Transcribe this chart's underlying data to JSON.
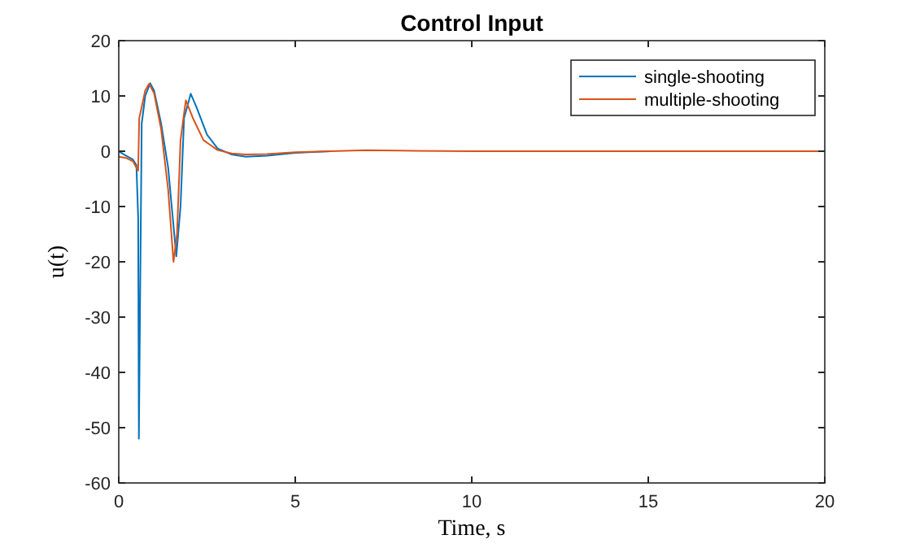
{
  "chart_data": {
    "type": "line",
    "title": "Control Input",
    "xlabel": "Time, s",
    "ylabel": "u(t)",
    "xlim": [
      0,
      20
    ],
    "ylim": [
      -60,
      20
    ],
    "xticks": [
      0,
      5,
      10,
      15,
      20
    ],
    "yticks": [
      -60,
      -50,
      -40,
      -30,
      -20,
      -10,
      0,
      10,
      20
    ],
    "legend": "top right",
    "grid": false,
    "series": [
      {
        "name": "single-shooting",
        "color": "#0072bd",
        "x": [
          0,
          0.2,
          0.4,
          0.5,
          0.55,
          0.57,
          0.6,
          0.65,
          0.75,
          0.89,
          1.0,
          1.2,
          1.4,
          1.5,
          1.63,
          1.75,
          1.85,
          2.04,
          2.2,
          2.5,
          2.8,
          3.2,
          3.6,
          4.2,
          5,
          6
        ],
        "values": [
          0,
          -0.8,
          -1.5,
          -2.5,
          -12,
          -52,
          -30,
          5,
          10,
          12.3,
          11,
          5,
          -3,
          -10,
          -19,
          -10,
          6,
          10.4,
          8,
          3,
          0.5,
          -0.6,
          -1,
          -0.8,
          -0.3,
          0
        ]
      },
      {
        "name": "multiple-shooting",
        "color": "#d95319",
        "x": [
          0,
          0.2,
          0.4,
          0.5,
          0.55,
          0.58,
          0.65,
          0.75,
          0.86,
          1.0,
          1.2,
          1.4,
          1.55,
          1.65,
          1.75,
          1.9,
          2.1,
          2.4,
          2.8,
          3.2,
          3.6,
          4.2,
          5,
          6,
          7,
          8,
          10,
          15,
          20
        ],
        "values": [
          -1,
          -1.2,
          -1.8,
          -3,
          -3.5,
          6,
          8,
          11,
          12.2,
          10.5,
          4,
          -7,
          -20,
          -15,
          2,
          9.2,
          6,
          2,
          0.2,
          -0.4,
          -0.6,
          -0.5,
          -0.2,
          0,
          0.2,
          0.1,
          0,
          0,
          0
        ]
      }
    ]
  }
}
